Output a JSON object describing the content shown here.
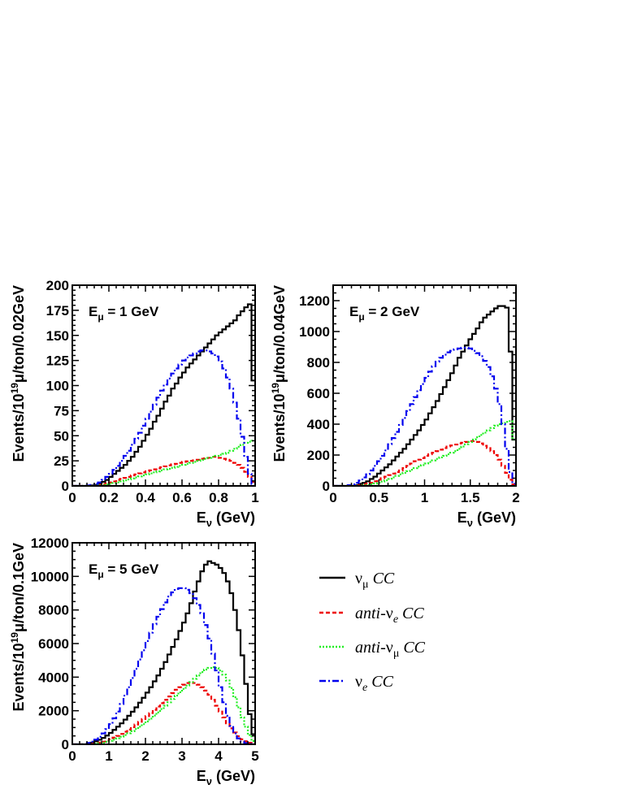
{
  "figure": {
    "legend": [
      {
        "key": "numu",
        "main": "ν",
        "sub": "μ",
        "tail": " CC",
        "color": "#000000",
        "dash": ""
      },
      {
        "key": "antinue",
        "main": "anti-ν",
        "sub": "e",
        "tail": " CC",
        "color": "#ee0000",
        "dash": "5,3"
      },
      {
        "key": "antinumu",
        "main": "anti-ν",
        "sub": "μ",
        "tail": " CC",
        "color": "#22ee22",
        "dash": "2,2"
      },
      {
        "key": "nue",
        "main": "ν",
        "sub": "e",
        "tail": " CC",
        "color": "#0000ee",
        "dash": "8,3,2,3"
      }
    ]
  },
  "chart_data": [
    {
      "type": "line",
      "step": true,
      "annotation": {
        "base": "E",
        "sub": "μ",
        "rest": " = 1 GeV"
      },
      "xlabel": {
        "base": "E",
        "sub": "ν",
        "rest": " (GeV)"
      },
      "ylabel": {
        "pre": "Events/10",
        "sup": "19",
        "post": "μ/ton/0.02GeV"
      },
      "xlim": [
        0,
        1
      ],
      "ylim": [
        0,
        200
      ],
      "xticks": [
        0,
        0.2,
        0.4,
        0.6,
        0.8,
        1
      ],
      "xtick_labels": [
        "0",
        "0.2",
        "0.4",
        "0.6",
        "0.8",
        "1"
      ],
      "yticks": [
        0,
        25,
        50,
        75,
        100,
        125,
        150,
        175,
        200
      ],
      "ytick_labels": [
        "0",
        "25",
        "50",
        "75",
        "100",
        "125",
        "150",
        "175",
        "200"
      ],
      "x": [
        0.0,
        0.02,
        0.04,
        0.06,
        0.08,
        0.1,
        0.12,
        0.14,
        0.16,
        0.18,
        0.2,
        0.22,
        0.24,
        0.26,
        0.28,
        0.3,
        0.32,
        0.34,
        0.36,
        0.38,
        0.4,
        0.42,
        0.44,
        0.46,
        0.48,
        0.5,
        0.52,
        0.54,
        0.56,
        0.58,
        0.6,
        0.62,
        0.64,
        0.66,
        0.68,
        0.7,
        0.72,
        0.74,
        0.76,
        0.78,
        0.8,
        0.82,
        0.84,
        0.86,
        0.88,
        0.9,
        0.92,
        0.94,
        0.96,
        0.98
      ],
      "series": [
        {
          "key": "numu",
          "values": [
            0.0,
            0.0,
            0.0,
            0.0,
            0.0,
            0.5,
            1.0,
            2.0,
            4.0,
            6.0,
            9.0,
            12.0,
            15.0,
            18.0,
            21.0,
            25.0,
            29.0,
            34.0,
            39.0,
            45.0,
            51.0,
            57.0,
            64.0,
            70.0,
            77.0,
            84.0,
            90.0,
            97.0,
            102.0,
            108.0,
            113.0,
            118.0,
            122.0,
            126.0,
            130.0,
            134.0,
            138.0,
            142.0,
            146.0,
            150.0,
            153.0,
            156.0,
            159.0,
            162.0,
            165.0,
            170.0,
            174.0,
            178.0,
            181.0,
            105.0
          ]
        },
        {
          "key": "antinue",
          "values": [
            0.0,
            0.0,
            0.0,
            0.0,
            0.0,
            0.0,
            0.5,
            1.0,
            1.5,
            2.5,
            3.5,
            4.5,
            6.0,
            7.0,
            8.0,
            9.0,
            10.5,
            11.5,
            12.5,
            13.5,
            14.5,
            15.5,
            16.5,
            17.5,
            18.5,
            19.5,
            20.5,
            21.5,
            22.0,
            23.0,
            24.0,
            24.5,
            25.0,
            25.5,
            26.0,
            27.0,
            27.5,
            28.0,
            29.0,
            29.0,
            28.0,
            27.0,
            26.0,
            25.0,
            23.0,
            21.0,
            18.0,
            14.0,
            9.0,
            4.0
          ]
        },
        {
          "key": "antinumu",
          "values": [
            0.0,
            0.0,
            0.0,
            0.0,
            0.0,
            0.0,
            0.0,
            0.5,
            1.0,
            1.5,
            2.0,
            3.0,
            3.5,
            4.5,
            5.5,
            6.5,
            7.5,
            8.5,
            9.5,
            10.5,
            11.5,
            12.5,
            13.5,
            14.5,
            15.5,
            16.5,
            17.0,
            18.0,
            19.0,
            20.0,
            21.0,
            22.0,
            23.0,
            24.0,
            25.0,
            26.0,
            27.0,
            28.0,
            29.0,
            30.0,
            31.0,
            32.0,
            33.0,
            35.0,
            37.0,
            39.0,
            41.0,
            43.0,
            44.0,
            45.0
          ]
        },
        {
          "key": "nue",
          "values": [
            0.0,
            0.0,
            0.0,
            0.0,
            0.5,
            1.0,
            2.0,
            3.5,
            6.0,
            9.0,
            12.0,
            16.0,
            20.0,
            25.0,
            30.0,
            35.0,
            41.0,
            47.0,
            53.0,
            60.0,
            67.0,
            74.0,
            81.0,
            88.0,
            95.0,
            101.0,
            107.0,
            112.0,
            117.0,
            121.0,
            125.0,
            128.0,
            130.0,
            132.0,
            134.0,
            135.0,
            135.0,
            134.0,
            132.0,
            129.0,
            124.0,
            117.0,
            108.0,
            97.0,
            83.0,
            67.0,
            49.0,
            29.0,
            12.0,
            2.0
          ]
        }
      ]
    },
    {
      "type": "line",
      "step": true,
      "annotation": {
        "base": "E",
        "sub": "μ",
        "rest": " = 2 GeV"
      },
      "xlabel": {
        "base": "E",
        "sub": "ν",
        "rest": " (GeV)"
      },
      "ylabel": {
        "pre": "Events/10",
        "sup": "19",
        "post": "μ/ton/0.04GeV"
      },
      "xlim": [
        0,
        2
      ],
      "ylim": [
        0,
        1300
      ],
      "xticks": [
        0,
        0.5,
        1,
        1.5,
        2
      ],
      "xtick_labels": [
        "0",
        "0.5",
        "1",
        "1.5",
        "2"
      ],
      "yticks": [
        0,
        200,
        400,
        600,
        800,
        1000,
        1200
      ],
      "ytick_labels": [
        "0",
        "200",
        "400",
        "600",
        "800",
        "1000",
        "1200"
      ],
      "x": [
        0.0,
        0.04,
        0.08,
        0.12,
        0.16,
        0.2,
        0.24,
        0.28,
        0.32,
        0.36,
        0.4,
        0.44,
        0.48,
        0.52,
        0.56,
        0.6,
        0.64,
        0.68,
        0.72,
        0.76,
        0.8,
        0.84,
        0.88,
        0.92,
        0.96,
        1.0,
        1.04,
        1.08,
        1.12,
        1.16,
        1.2,
        1.24,
        1.28,
        1.32,
        1.36,
        1.4,
        1.44,
        1.48,
        1.52,
        1.56,
        1.6,
        1.64,
        1.68,
        1.72,
        1.76,
        1.8,
        1.84,
        1.88,
        1.92,
        1.96
      ],
      "series": [
        {
          "key": "numu",
          "values": [
            0.0,
            0.0,
            0.0,
            0.0,
            0.0,
            0.0,
            5.0,
            10.0,
            20.0,
            30.0,
            45.0,
            60.0,
            80.0,
            100.0,
            120.0,
            140.0,
            165.0,
            190.0,
            215.0,
            240.0,
            270.0,
            300.0,
            330.0,
            360.0,
            395.0,
            430.0,
            470.0,
            510.0,
            550.0,
            595.0,
            640.0,
            685.0,
            730.0,
            780.0,
            830.0,
            870.0,
            910.0,
            950.0,
            985.0,
            1020.0,
            1060.0,
            1090.0,
            1110.0,
            1130.0,
            1150.0,
            1165.0,
            1165.0,
            1155.0,
            870.0,
            300.0
          ]
        },
        {
          "key": "antinue",
          "values": [
            0.0,
            0.0,
            0.0,
            0.0,
            0.0,
            0.0,
            0.0,
            5.0,
            10.0,
            15.0,
            20.0,
            30.0,
            40.0,
            50.0,
            60.0,
            70.0,
            80.0,
            90.0,
            100.0,
            115.0,
            130.0,
            145.0,
            160.0,
            170.0,
            180.0,
            195.0,
            205.0,
            215.0,
            225.0,
            235.0,
            245.0,
            255.0,
            262.0,
            268.0,
            275.0,
            280.0,
            285.0,
            290.0,
            290.0,
            285.0,
            275.0,
            260.0,
            245.0,
            225.0,
            200.0,
            170.0,
            130.0,
            85.0,
            40.0,
            10.0
          ]
        },
        {
          "key": "antinumu",
          "values": [
            0.0,
            0.0,
            0.0,
            0.0,
            0.0,
            0.0,
            0.0,
            0.0,
            3.0,
            6.0,
            10.0,
            15.0,
            20.0,
            28.0,
            36.0,
            45.0,
            55.0,
            65.0,
            75.0,
            85.0,
            95.0,
            105.0,
            115.0,
            125.0,
            135.0,
            145.0,
            155.0,
            165.0,
            175.0,
            185.0,
            195.0,
            205.0,
            215.0,
            225.0,
            240.0,
            255.0,
            270.0,
            285.0,
            300.0,
            315.0,
            330.0,
            345.0,
            360.0,
            375.0,
            390.0,
            400.0,
            405.0,
            415.0,
            420.0,
            300.0
          ]
        },
        {
          "key": "nue",
          "values": [
            0.0,
            0.0,
            0.0,
            0.0,
            5.0,
            10.0,
            20.0,
            35.0,
            55.0,
            75.0,
            100.0,
            130.0,
            160.0,
            195.0,
            230.0,
            270.0,
            310.0,
            350.0,
            395.0,
            440.0,
            485.0,
            530.0,
            575.0,
            620.0,
            660.0,
            700.0,
            740.0,
            775.0,
            805.0,
            830.0,
            850.0,
            865.0,
            875.0,
            885.0,
            890.0,
            895.0,
            895.0,
            890.0,
            875.0,
            860.0,
            840.0,
            810.0,
            770.0,
            710.0,
            630.0,
            530.0,
            400.0,
            240.0,
            90.0,
            15.0
          ]
        }
      ]
    },
    {
      "type": "line",
      "step": true,
      "annotation": {
        "base": "E",
        "sub": "μ",
        "rest": " = 5 GeV"
      },
      "xlabel": {
        "base": "E",
        "sub": "ν",
        "rest": " (GeV)"
      },
      "ylabel": {
        "pre": "Events/10",
        "sup": "19",
        "post": "μ/ton/0.1GeV"
      },
      "xlim": [
        0,
        5
      ],
      "ylim": [
        0,
        12000
      ],
      "xticks": [
        0,
        1,
        2,
        3,
        4,
        5
      ],
      "xtick_labels": [
        "0",
        "1",
        "2",
        "3",
        "4",
        "5"
      ],
      "yticks": [
        0,
        2000,
        4000,
        6000,
        8000,
        10000,
        12000
      ],
      "ytick_labels": [
        "0",
        "2000",
        "4000",
        "6000",
        "8000",
        "10000",
        "12000"
      ],
      "x": [
        0.0,
        0.1,
        0.2,
        0.3,
        0.4,
        0.5,
        0.6,
        0.7,
        0.8,
        0.9,
        1.0,
        1.1,
        1.2,
        1.3,
        1.4,
        1.5,
        1.6,
        1.7,
        1.8,
        1.9,
        2.0,
        2.1,
        2.2,
        2.3,
        2.4,
        2.5,
        2.6,
        2.7,
        2.8,
        2.9,
        3.0,
        3.1,
        3.2,
        3.3,
        3.4,
        3.5,
        3.6,
        3.7,
        3.8,
        3.9,
        4.0,
        4.1,
        4.2,
        4.3,
        4.4,
        4.5,
        4.6,
        4.7,
        4.8,
        4.9
      ],
      "series": [
        {
          "key": "numu",
          "values": [
            0.0,
            0.0,
            0.0,
            0.0,
            50.0,
            100.0,
            180.0,
            270.0,
            380.0,
            520.0,
            680.0,
            860.0,
            1050.0,
            1250.0,
            1470.0,
            1700.0,
            1940.0,
            2200.0,
            2480.0,
            2770.0,
            3080.0,
            3400.0,
            3750.0,
            4100.0,
            4500.0,
            4900.0,
            5350.0,
            5800.0,
            6250.0,
            6750.0,
            7250.0,
            7800.0,
            8400.0,
            9100.0,
            9700.0,
            10300.0,
            10700.0,
            10900.0,
            10800.0,
            10700.0,
            10500.0,
            10200.0,
            9700.0,
            9000.0,
            8000.0,
            6800.0,
            5300.0,
            3600.0,
            1800.0,
            600.0
          ]
        },
        {
          "key": "antinue",
          "values": [
            0.0,
            0.0,
            0.0,
            0.0,
            0.0,
            30.0,
            60.0,
            100.0,
            150.0,
            220.0,
            300.0,
            400.0,
            500.0,
            620.0,
            750.0,
            880.0,
            1020.0,
            1180.0,
            1340.0,
            1510.0,
            1680.0,
            1860.0,
            2050.0,
            2250.0,
            2450.0,
            2650.0,
            2850.0,
            3050.0,
            3250.0,
            3400.0,
            3550.0,
            3650.0,
            3700.0,
            3650.0,
            3550.0,
            3400.0,
            3200.0,
            2950.0,
            2650.0,
            2300.0,
            1950.0,
            1600.0,
            1250.0,
            950.0,
            700.0,
            480.0,
            300.0,
            180.0,
            90.0,
            30.0
          ]
        },
        {
          "key": "antinumu",
          "values": [
            0.0,
            0.0,
            0.0,
            0.0,
            0.0,
            0.0,
            30.0,
            60.0,
            100.0,
            150.0,
            210.0,
            280.0,
            360.0,
            450.0,
            550.0,
            660.0,
            780.0,
            910.0,
            1050.0,
            1200.0,
            1360.0,
            1530.0,
            1710.0,
            1900.0,
            2100.0,
            2300.0,
            2500.0,
            2700.0,
            2900.0,
            3100.0,
            3300.0,
            3500.0,
            3700.0,
            3900.0,
            4100.0,
            4300.0,
            4450.0,
            4550.0,
            4600.0,
            4550.0,
            4400.0,
            4150.0,
            3800.0,
            3350.0,
            2800.0,
            2200.0,
            1600.0,
            1050.0,
            550.0,
            200.0
          ]
        },
        {
          "key": "nue",
          "values": [
            0.0,
            0.0,
            0.0,
            0.0,
            80.0,
            160.0,
            280.0,
            450.0,
            650.0,
            900.0,
            1200.0,
            1550.0,
            1950.0,
            2400.0,
            2900.0,
            3400.0,
            3950.0,
            4500.0,
            5050.0,
            5600.0,
            6150.0,
            6650.0,
            7150.0,
            7600.0,
            8050.0,
            8450.0,
            8800.0,
            9050.0,
            9250.0,
            9300.0,
            9300.0,
            9200.0,
            9000.0,
            8700.0,
            8300.0,
            7800.0,
            7100.0,
            6300.0,
            5400.0,
            4400.0,
            3400.0,
            2500.0,
            1700.0,
            1100.0,
            650.0,
            350.0,
            170.0,
            70.0,
            20.0,
            0.0
          ]
        }
      ]
    }
  ]
}
